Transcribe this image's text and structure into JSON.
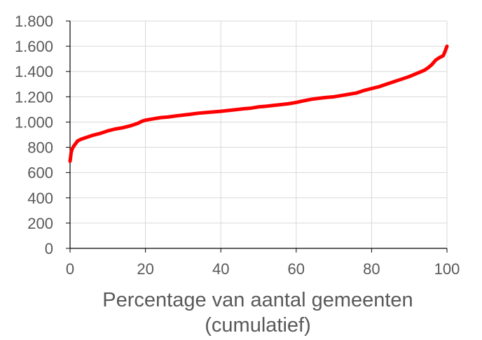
{
  "chart_data": {
    "type": "line",
    "title": "",
    "xlabel": "Percentage van aantal gemeenten",
    "xlabel_line2": "(cumulatief)",
    "ylabel": "",
    "xlim": [
      0,
      100
    ],
    "ylim": [
      0,
      1800
    ],
    "x_ticks": [
      0,
      20,
      40,
      60,
      80,
      100
    ],
    "x_tick_labels": [
      "0",
      "20",
      "40",
      "60",
      "80",
      "100"
    ],
    "y_ticks": [
      0,
      200,
      400,
      600,
      800,
      1000,
      1200,
      1400,
      1600,
      1800
    ],
    "y_tick_labels": [
      "0",
      "200",
      "400",
      "600",
      "800",
      "1.000",
      "1.200",
      "1.400",
      "1.600",
      "1.800"
    ],
    "grid": true,
    "legend": "none",
    "series": [
      {
        "color": "#ff0000",
        "x": [
          0,
          0.3,
          0.6,
          1,
          1.5,
          2,
          3,
          4,
          5,
          6,
          8,
          10,
          12,
          14,
          16,
          18,
          19,
          20,
          22,
          24,
          26,
          28,
          30,
          32,
          34,
          36,
          38,
          40,
          42,
          44,
          46,
          48,
          50,
          52,
          54,
          56,
          58,
          60,
          62,
          64,
          66,
          68,
          70,
          72,
          74,
          76,
          78,
          80,
          82,
          84,
          86,
          88,
          90,
          92,
          94,
          95,
          96,
          97,
          98,
          99,
          99.5,
          100
        ],
        "y": [
          690,
          760,
          790,
          810,
          830,
          850,
          865,
          875,
          885,
          895,
          910,
          930,
          945,
          955,
          970,
          990,
          1005,
          1015,
          1025,
          1035,
          1040,
          1048,
          1055,
          1062,
          1070,
          1075,
          1080,
          1085,
          1092,
          1098,
          1105,
          1110,
          1120,
          1125,
          1132,
          1138,
          1145,
          1155,
          1168,
          1180,
          1188,
          1195,
          1200,
          1210,
          1220,
          1230,
          1250,
          1265,
          1280,
          1300,
          1320,
          1340,
          1360,
          1385,
          1410,
          1430,
          1455,
          1490,
          1510,
          1525,
          1560,
          1600
        ]
      }
    ]
  }
}
